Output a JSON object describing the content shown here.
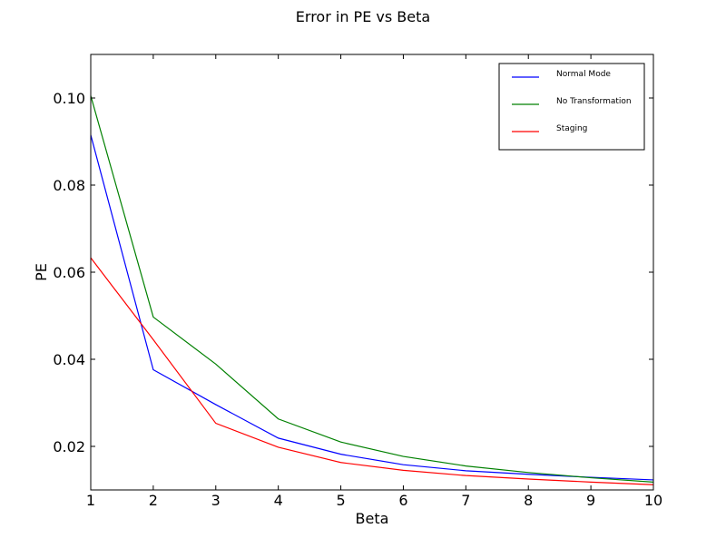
{
  "chart_data": {
    "type": "line",
    "title": "Error in PE vs Beta",
    "xlabel": "Beta",
    "ylabel": "PE",
    "xlim": [
      1,
      10
    ],
    "ylim": [
      0.01,
      0.11
    ],
    "grid": false,
    "legend_position": "top-right",
    "x": [
      1,
      2,
      3,
      4,
      5,
      6,
      7,
      8,
      9,
      10
    ],
    "x_ticks": [
      1,
      2,
      3,
      4,
      5,
      6,
      7,
      8,
      9,
      10
    ],
    "x_tick_labels": [
      "1",
      "2",
      "3",
      "4",
      "5",
      "6",
      "7",
      "8",
      "9",
      "10"
    ],
    "y_ticks": [
      0.02,
      0.04,
      0.06,
      0.08,
      0.1
    ],
    "y_tick_labels": [
      "0.02",
      "0.04",
      "0.06",
      "0.08",
      "0.10"
    ],
    "series": [
      {
        "name": "Normal Mode",
        "color": "#0000ff",
        "values": [
          0.0915,
          0.0376,
          0.0296,
          0.0219,
          0.0182,
          0.0158,
          0.0144,
          0.0136,
          0.0129,
          0.0123
        ]
      },
      {
        "name": "No Transformation",
        "color": "#008000",
        "values": [
          0.1005,
          0.0497,
          0.0389,
          0.0263,
          0.021,
          0.0177,
          0.0155,
          0.014,
          0.0128,
          0.0118
        ]
      },
      {
        "name": "Staging",
        "color": "#ff0000",
        "values": [
          0.0633,
          0.0445,
          0.0253,
          0.0198,
          0.0163,
          0.0145,
          0.0133,
          0.0125,
          0.0118,
          0.0112
        ]
      }
    ]
  }
}
